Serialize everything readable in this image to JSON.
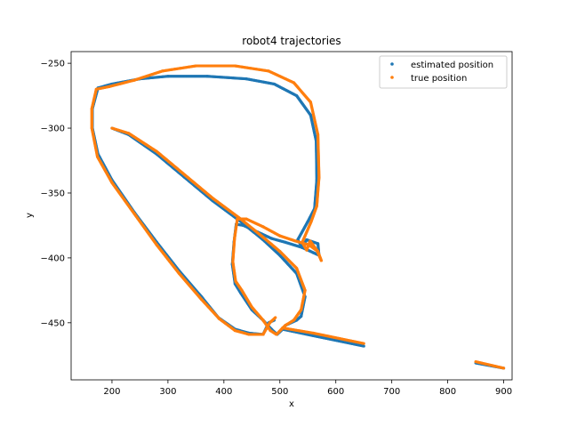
{
  "chart_data": {
    "type": "scatter",
    "title": "robot4 trajectories",
    "xlabel": "x",
    "ylabel": "y",
    "xlim": [
      127,
      915
    ],
    "ylim": [
      -494,
      -241
    ],
    "xticks": [
      200,
      300,
      400,
      500,
      600,
      700,
      800,
      900
    ],
    "yticks": [
      -250,
      -300,
      -350,
      -400,
      -450
    ],
    "xtick_labels": [
      "200",
      "300",
      "400",
      "500",
      "600",
      "700",
      "800",
      "900"
    ],
    "ytick_labels": [
      "−250",
      "−300",
      "−350",
      "−400",
      "−450"
    ],
    "grid": false,
    "legend_position": "top-right",
    "series": [
      {
        "name": "estimated position",
        "color": "#1f77b4",
        "points": [
          [
            200,
            -300
          ],
          [
            230,
            -305
          ],
          [
            280,
            -320
          ],
          [
            330,
            -338
          ],
          [
            380,
            -356
          ],
          [
            430,
            -372
          ],
          [
            470,
            -386
          ],
          [
            500,
            -398
          ],
          [
            530,
            -412
          ],
          [
            545,
            -430
          ],
          [
            538,
            -445
          ],
          [
            530,
            -448
          ],
          [
            510,
            -452
          ],
          [
            505,
            -455
          ],
          [
            560,
            -460
          ],
          [
            650,
            -468
          ],
          [
            750,
            -475
          ],
          [
            850,
            -481
          ],
          [
            900,
            -485
          ],
          [
            505,
            -455
          ],
          [
            495,
            -459
          ],
          [
            485,
            -455
          ],
          [
            470,
            -448
          ],
          [
            450,
            -440
          ],
          [
            430,
            -427
          ],
          [
            420,
            -420
          ],
          [
            415,
            -405
          ],
          [
            418,
            -388
          ],
          [
            422,
            -374
          ],
          [
            435,
            -375
          ],
          [
            460,
            -380
          ],
          [
            485,
            -385
          ],
          [
            510,
            -388
          ],
          [
            540,
            -392
          ],
          [
            560,
            -396
          ],
          [
            570,
            -398
          ],
          [
            568,
            -389
          ],
          [
            548,
            -386
          ],
          [
            540,
            -392
          ],
          [
            532,
            -386
          ],
          [
            550,
            -372
          ],
          [
            562,
            -362
          ],
          [
            566,
            -340
          ],
          [
            565,
            -310
          ],
          [
            555,
            -290
          ],
          [
            530,
            -275
          ],
          [
            490,
            -266
          ],
          [
            440,
            -262
          ],
          [
            370,
            -260
          ],
          [
            300,
            -260
          ],
          [
            250,
            -262
          ],
          [
            200,
            -266
          ],
          [
            175,
            -269
          ],
          [
            165,
            -285
          ],
          [
            165,
            -300
          ],
          [
            175,
            -320
          ],
          [
            200,
            -340
          ],
          [
            240,
            -365
          ],
          [
            280,
            -388
          ],
          [
            320,
            -410
          ],
          [
            360,
            -430
          ],
          [
            390,
            -446
          ],
          [
            420,
            -455
          ],
          [
            445,
            -458
          ],
          [
            470,
            -459
          ],
          [
            480,
            -450
          ],
          [
            490,
            -448
          ]
        ]
      },
      {
        "name": "true position",
        "color": "#ff7f0e",
        "points": [
          [
            200,
            -300
          ],
          [
            230,
            -304
          ],
          [
            280,
            -318
          ],
          [
            330,
            -336
          ],
          [
            380,
            -354
          ],
          [
            430,
            -370
          ],
          [
            470,
            -384
          ],
          [
            500,
            -395
          ],
          [
            530,
            -408
          ],
          [
            545,
            -425
          ],
          [
            538,
            -440
          ],
          [
            525,
            -448
          ],
          [
            510,
            -452
          ],
          [
            505,
            -454
          ],
          [
            560,
            -458
          ],
          [
            650,
            -466
          ],
          [
            750,
            -474
          ],
          [
            850,
            -480
          ],
          [
            900,
            -485
          ],
          [
            505,
            -454
          ],
          [
            494,
            -459
          ],
          [
            483,
            -456
          ],
          [
            470,
            -448
          ],
          [
            450,
            -438
          ],
          [
            432,
            -425
          ],
          [
            421,
            -418
          ],
          [
            416,
            -403
          ],
          [
            419,
            -385
          ],
          [
            424,
            -370
          ],
          [
            440,
            -370
          ],
          [
            470,
            -376
          ],
          [
            500,
            -383
          ],
          [
            528,
            -387
          ],
          [
            552,
            -390
          ],
          [
            568,
            -395
          ],
          [
            574,
            -402
          ],
          [
            566,
            -394
          ],
          [
            554,
            -387
          ],
          [
            548,
            -394
          ],
          [
            540,
            -388
          ],
          [
            556,
            -372
          ],
          [
            566,
            -360
          ],
          [
            570,
            -338
          ],
          [
            568,
            -305
          ],
          [
            555,
            -280
          ],
          [
            525,
            -265
          ],
          [
            480,
            -256
          ],
          [
            420,
            -252
          ],
          [
            350,
            -252
          ],
          [
            290,
            -256
          ],
          [
            240,
            -263
          ],
          [
            195,
            -268
          ],
          [
            172,
            -270
          ],
          [
            164,
            -285
          ],
          [
            164,
            -300
          ],
          [
            174,
            -322
          ],
          [
            200,
            -342
          ],
          [
            240,
            -366
          ],
          [
            280,
            -390
          ],
          [
            320,
            -412
          ],
          [
            360,
            -432
          ],
          [
            392,
            -447
          ],
          [
            420,
            -456
          ],
          [
            445,
            -459
          ],
          [
            470,
            -459
          ],
          [
            482,
            -450
          ],
          [
            492,
            -446
          ]
        ]
      }
    ]
  }
}
